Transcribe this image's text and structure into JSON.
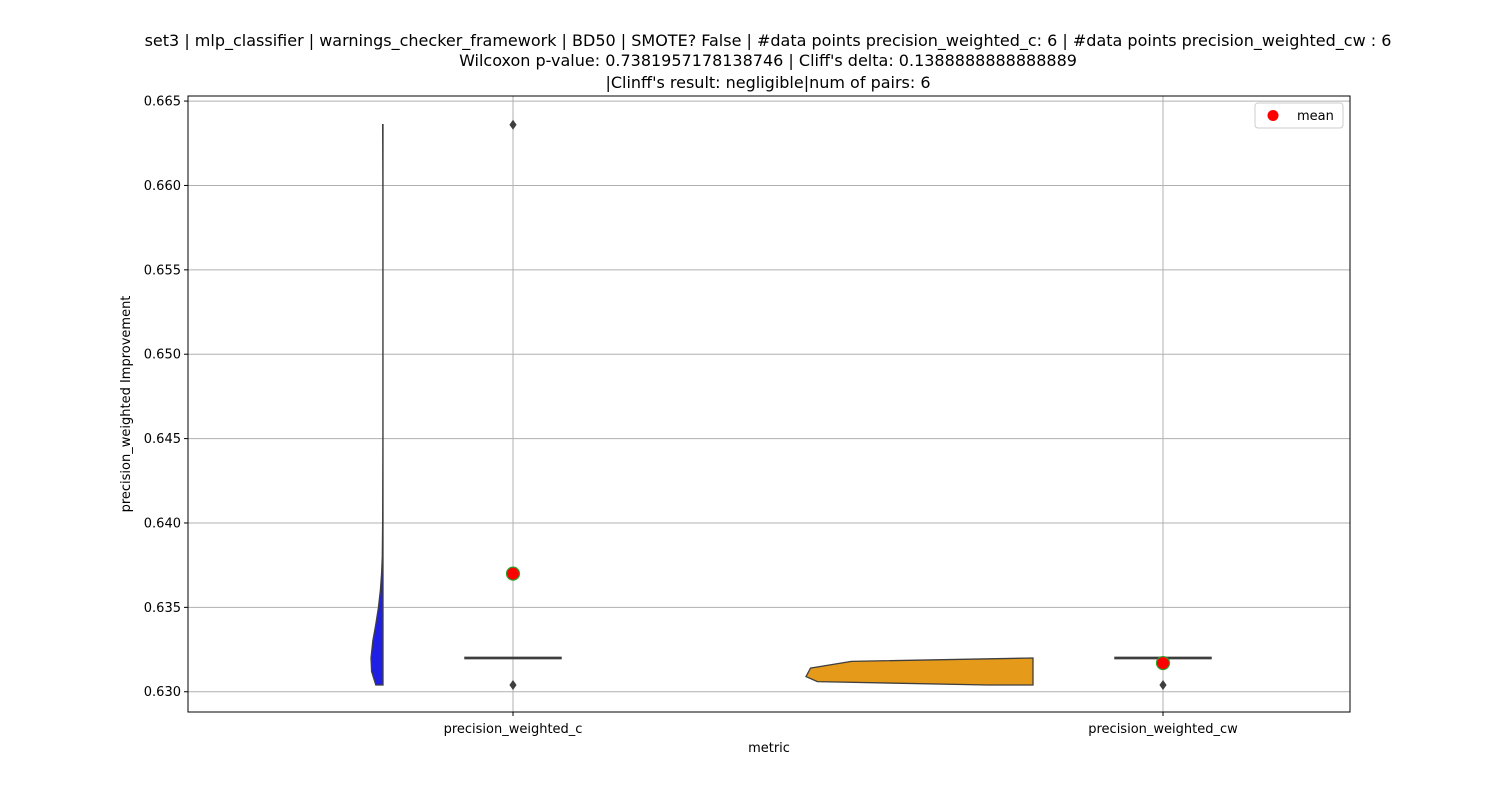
{
  "chart_data": {
    "type": "violin",
    "title_lines": [
      "set3 | mlp_classifier | warnings_checker_framework | BD50 | SMOTE? False | #data points precision_weighted_c: 6 | #data points precision_weighted_cw : 6",
      "Wilcoxon p-value: 0.7381957178138746 | Cliff's delta: 0.1388888888888889",
      "|Clinff's result: negligible|num of pairs: 6"
    ],
    "xlabel": "metric",
    "ylabel": "precision_weighted Improvement",
    "categories": [
      "precision_weighted_c",
      "precision_weighted_cw"
    ],
    "ylim": [
      0.6288,
      0.6653
    ],
    "yticks": [
      0.63,
      0.635,
      0.64,
      0.645,
      0.65,
      0.655,
      0.66,
      0.665
    ],
    "ytick_labels": [
      "0.630",
      "0.635",
      "0.640",
      "0.645",
      "0.650",
      "0.655",
      "0.660",
      "0.665"
    ],
    "grid": true,
    "legend": {
      "position": "top-right",
      "entries": [
        "mean"
      ]
    },
    "series": [
      {
        "category": "precision_weighted_c",
        "color": "#1f1fe6",
        "min": 0.6304,
        "max": 0.6636,
        "median": 0.632,
        "q1": 0.632,
        "q3": 0.632,
        "outliers": [
          0.6636,
          0.6304
        ],
        "mean": 0.637,
        "density": [
          [
            0.6304,
            0.6
          ],
          [
            0.6312,
            0.95
          ],
          [
            0.632,
            1.0
          ],
          [
            0.633,
            0.85
          ],
          [
            0.634,
            0.6
          ],
          [
            0.635,
            0.38
          ],
          [
            0.636,
            0.22
          ],
          [
            0.637,
            0.12
          ],
          [
            0.638,
            0.06
          ],
          [
            0.64,
            0.03
          ],
          [
            0.645,
            0.01
          ],
          [
            0.65,
            0.01
          ],
          [
            0.655,
            0.01
          ],
          [
            0.66,
            0.012
          ],
          [
            0.6636,
            0.03
          ]
        ]
      },
      {
        "category": "precision_weighted_cw",
        "color": "#e69a1a",
        "min": 0.6304,
        "max": 0.632,
        "median": 0.632,
        "q1": 0.632,
        "q3": 0.632,
        "outliers": [
          0.6304
        ],
        "mean": 0.6317,
        "density": [
          [
            0.6304,
            0.2
          ],
          [
            0.6306,
            0.95
          ],
          [
            0.6309,
            1.0
          ],
          [
            0.6314,
            0.98
          ],
          [
            0.6318,
            0.8
          ],
          [
            0.632,
            0.0
          ]
        ]
      }
    ],
    "mean_marker_color": "#ff0000",
    "mean_marker_edge": "#2ca02c"
  }
}
